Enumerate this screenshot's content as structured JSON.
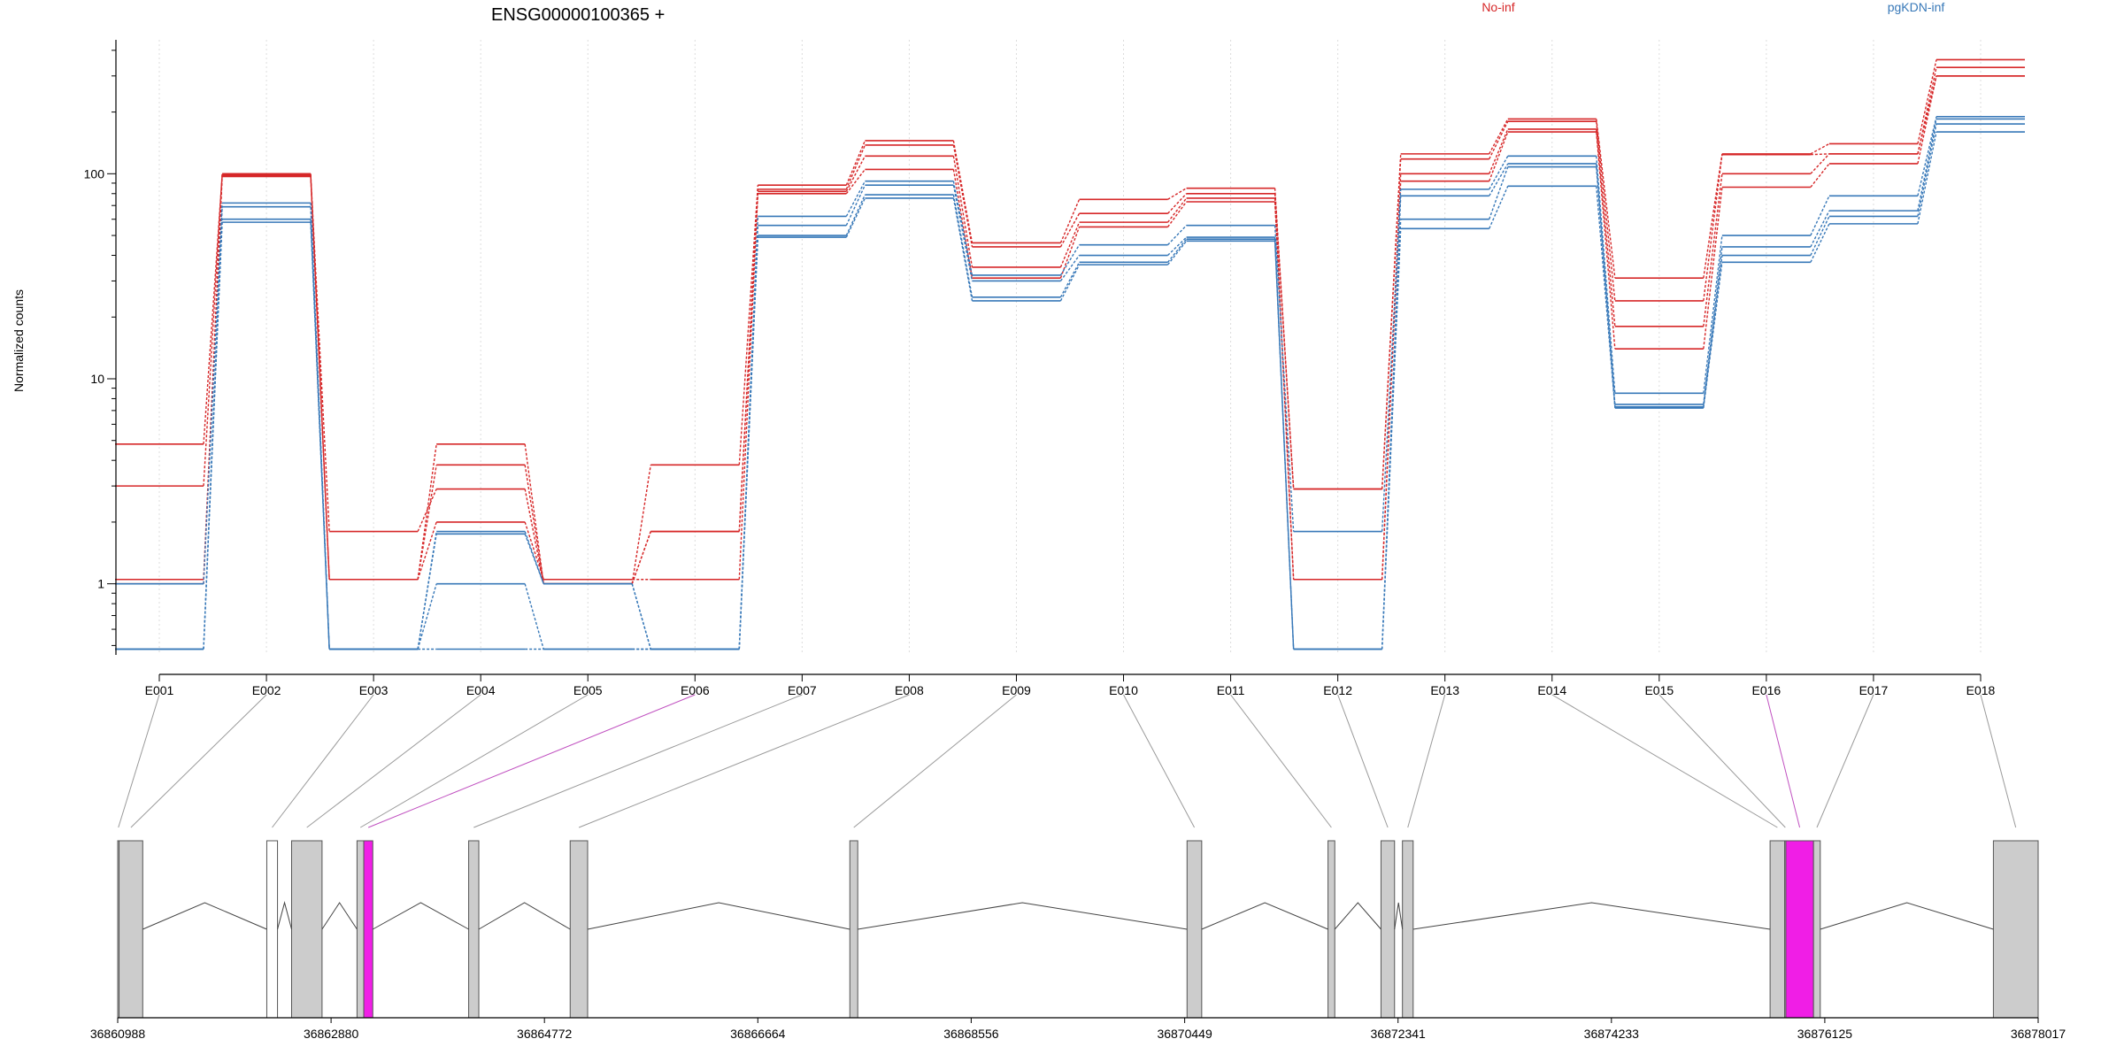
{
  "chart_data": [
    {
      "type": "line",
      "title": "ENSG00000100365 +",
      "ylabel": "Normalized counts",
      "xlabel": "",
      "y_scale": "log",
      "ylim": [
        0.45,
        450
      ],
      "y_ticks": [
        1,
        10,
        100
      ],
      "y_tick_labels": [
        "1",
        "10",
        "100"
      ],
      "grid": "vertical dotted",
      "legend_placement": "top-right",
      "categories": [
        "E001",
        "E002",
        "E003",
        "E004",
        "E005",
        "E006",
        "E007",
        "E008",
        "E009",
        "E010",
        "E011",
        "E012",
        "E013",
        "E014",
        "E015",
        "E016",
        "E017",
        "E018"
      ],
      "legend": [
        {
          "label": "No-inf",
          "color": "#D62728"
        },
        {
          "label": "pgKDN-inf",
          "color": "#3778B8"
        }
      ],
      "groups": [
        {
          "label": "No-inf",
          "color": "#D62728",
          "series": [
            {
              "values": [
                4.8,
                98,
                1.05,
                4.8,
                1.0,
                3.8,
                88,
                145,
                46,
                75,
                85,
                2.9,
                125,
                185,
                31,
                125,
                140,
                360
              ]
            },
            {
              "values": [
                3.0,
                100,
                1.05,
                3.8,
                1.0,
                1.8,
                84,
                138,
                44,
                64,
                80,
                2.9,
                118,
                180,
                24,
                124,
                125,
                330
              ]
            },
            {
              "values": [
                1.05,
                99,
                1.8,
                2.9,
                1.0,
                1.8,
                82,
                122,
                35,
                58,
                76,
                1.05,
                100,
                165,
                18,
                100,
                125,
                300
              ]
            },
            {
              "values": [
                1.0,
                97,
                1.05,
                2.0,
                1.05,
                1.05,
                80,
                105,
                31,
                55,
                73,
                1.05,
                92,
                160,
                14,
                86,
                112,
                300
              ]
            }
          ]
        },
        {
          "label": "pgKDN-inf",
          "color": "#3778B8",
          "series": [
            {
              "values": [
                1.0,
                72,
                0.48,
                1.8,
                1.0,
                0.48,
                62,
                92,
                32,
                45,
                56,
                1.8,
                84,
                122,
                8.5,
                50,
                78,
                190
              ]
            },
            {
              "values": [
                0.48,
                69,
                0.48,
                1.75,
                1.0,
                0.48,
                56,
                88,
                30,
                40,
                49,
                0.48,
                78,
                112,
                7.5,
                44,
                66,
                185
              ]
            },
            {
              "values": [
                0.48,
                60,
                0.48,
                1.0,
                0.48,
                0.48,
                50,
                79,
                25,
                37,
                48,
                0.48,
                60,
                108,
                7.3,
                40,
                62,
                175
              ]
            },
            {
              "values": [
                0.48,
                58,
                0.48,
                0.48,
                0.48,
                0.48,
                49,
                76,
                24,
                36,
                47,
                0.48,
                54,
                87,
                7.2,
                37,
                57,
                160
              ]
            }
          ]
        }
      ]
    },
    {
      "type": "gene-model",
      "x_ticks": [
        36860988,
        36862880,
        36864772,
        36866664,
        36868556,
        36870449,
        36872341,
        36874233,
        36876125,
        36878017
      ],
      "x_tick_labels": [
        "36860988",
        "36862880",
        "36864772",
        "36866664",
        "36868556",
        "36870449",
        "36872341",
        "36874233",
        "36876125",
        "36878017"
      ],
      "xlim": [
        36860988,
        36878017
      ],
      "highlight_color": "#F01EE6",
      "exon_color": "#CCCCCC",
      "bins": [
        {
          "id": "E001",
          "start": 36860988,
          "end": 36861000,
          "fill": "#CCCCCC"
        },
        {
          "id": "E002",
          "start": 36861000,
          "end": 36861210,
          "fill": "#CCCCCC"
        },
        {
          "id": "E003",
          "start": 36862310,
          "end": 36862405,
          "fill": "#FFFFFF"
        },
        {
          "id": "E004",
          "start": 36862530,
          "end": 36862800,
          "fill": "#CCCCCC"
        },
        {
          "id": "E005",
          "start": 36863110,
          "end": 36863170,
          "fill": "#CCCCCC"
        },
        {
          "id": "E006",
          "start": 36863170,
          "end": 36863250,
          "fill": "#F01EE6"
        },
        {
          "id": "E007",
          "start": 36864100,
          "end": 36864190,
          "fill": "#CCCCCC"
        },
        {
          "id": "E008",
          "start": 36865000,
          "end": 36865155,
          "fill": "#CCCCCC"
        },
        {
          "id": "E009",
          "start": 36867480,
          "end": 36867550,
          "fill": "#CCCCCC"
        },
        {
          "id": "E010",
          "start": 36870470,
          "end": 36870600,
          "fill": "#CCCCCC"
        },
        {
          "id": "E011",
          "start": 36871720,
          "end": 36871780,
          "fill": "#CCCCCC"
        },
        {
          "id": "E012",
          "start": 36872190,
          "end": 36872310,
          "fill": "#CCCCCC"
        },
        {
          "id": "E013",
          "start": 36872380,
          "end": 36872475,
          "fill": "#CCCCCC"
        },
        {
          "id": "E014",
          "start": 36875640,
          "end": 36875770,
          "fill": "#CCCCCC"
        },
        {
          "id": "E015",
          "start": 36875770,
          "end": 36875780,
          "fill": "#CCCCCC"
        },
        {
          "id": "E016",
          "start": 36875780,
          "end": 36876025,
          "fill": "#F01EE6"
        },
        {
          "id": "E017",
          "start": 36876025,
          "end": 36876085,
          "fill": "#CCCCCC"
        },
        {
          "id": "E018",
          "start": 36877620,
          "end": 36878017,
          "fill": "#CCCCCC"
        }
      ],
      "highlighted_bins": [
        "E006",
        "E016"
      ]
    }
  ]
}
